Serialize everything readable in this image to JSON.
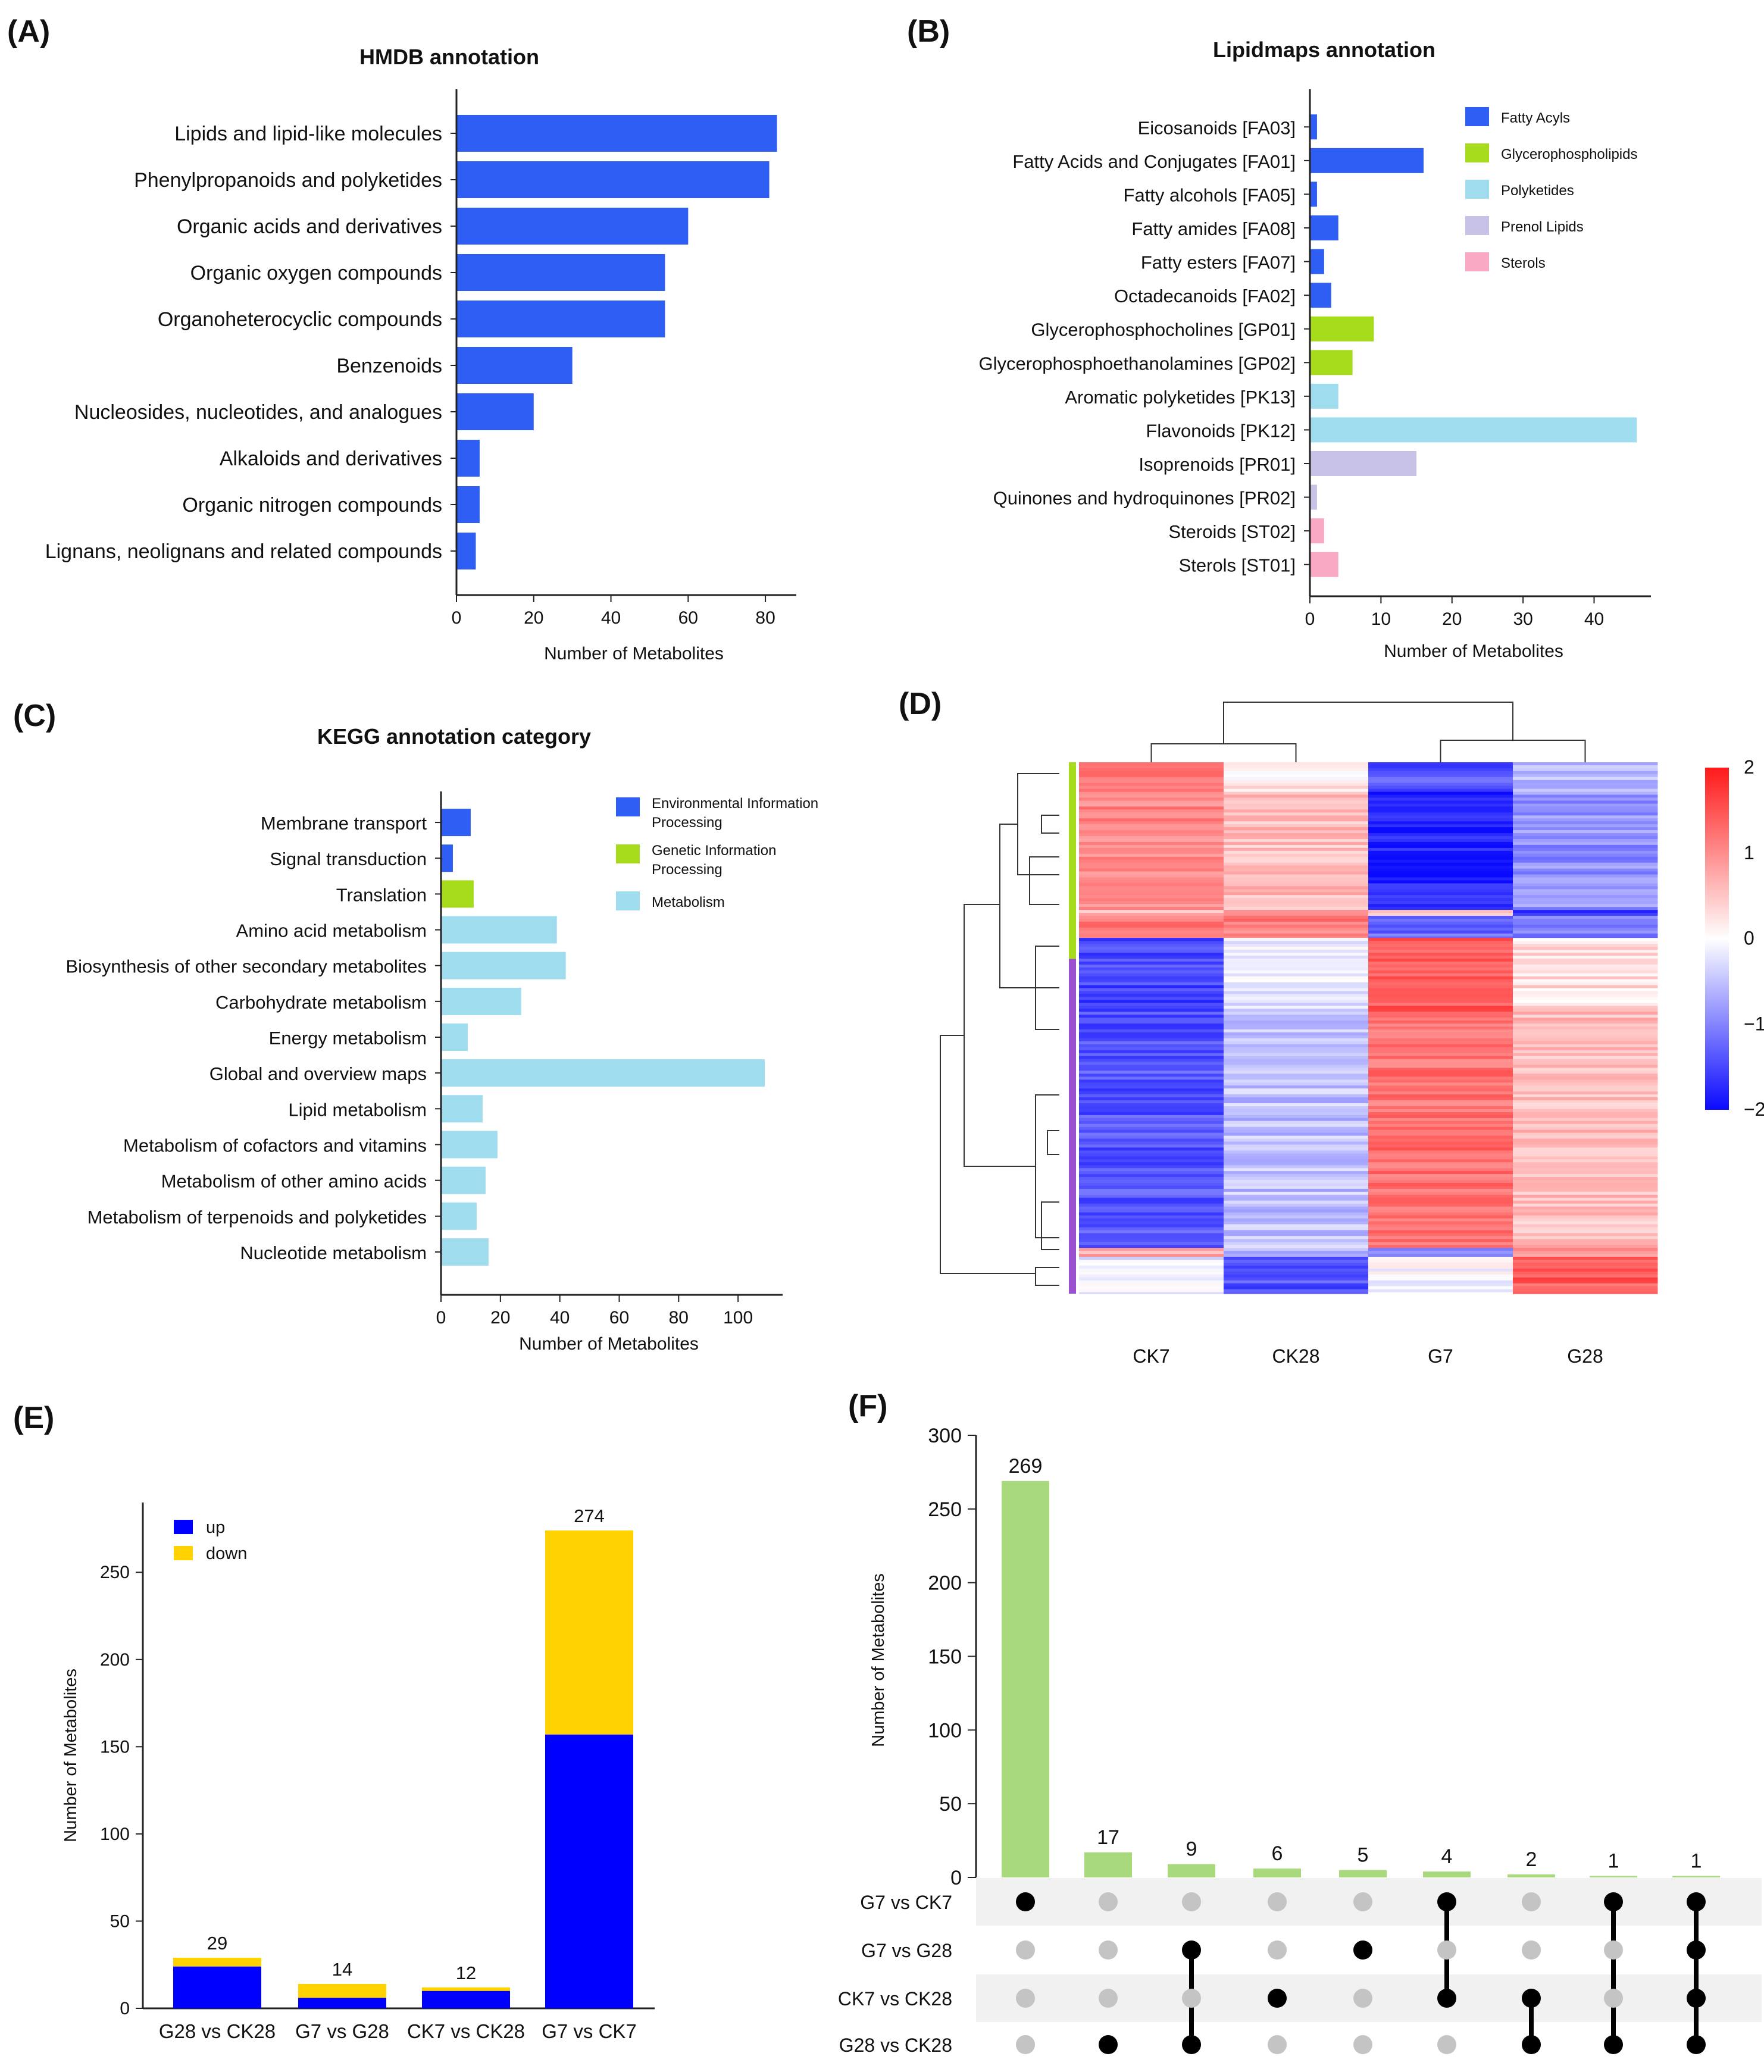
{
  "chart_data": [
    {
      "panel": "(A)",
      "type": "bar",
      "orientation": "horizontal",
      "title": "HMDB annotation",
      "xlabel": "Number of Metabolites",
      "categories": [
        "Lipids and lipid-like molecules",
        "Phenylpropanoids and polyketides",
        "Organic acids and derivatives",
        "Organic oxygen compounds",
        "Organoheterocyclic compounds",
        "Benzenoids",
        "Nucleosides, nucleotides, and analogues",
        "Alkaloids and derivatives",
        "Organic nitrogen compounds",
        "Lignans, neolignans and related compounds"
      ],
      "values": [
        83,
        81,
        60,
        54,
        54,
        30,
        20,
        6,
        6,
        5
      ],
      "xlim": [
        0,
        88
      ],
      "ticks": [
        0,
        20,
        40,
        60,
        80
      ],
      "color": "#2f5ef5"
    },
    {
      "panel": "(B)",
      "type": "bar",
      "orientation": "horizontal",
      "title": "Lipidmaps annotation",
      "xlabel": "Number of Metabolites",
      "categories": [
        "Eicosanoids [FA03]",
        "Fatty Acids and Conjugates [FA01]",
        "Fatty alcohols [FA05]",
        "Fatty amides [FA08]",
        "Fatty esters [FA07]",
        "Octadecanoids [FA02]",
        "Glycerophosphocholines [GP01]",
        "Glycerophosphoethanolamines [GP02]",
        "Aromatic polyketides [PK13]",
        "Flavonoids [PK12]",
        "Isoprenoids [PR01]",
        "Quinones and hydroquinones [PR02]",
        "Steroids [ST02]",
        "Sterols [ST01]"
      ],
      "values": [
        1,
        16,
        1,
        4,
        2,
        3,
        9,
        6,
        4,
        46,
        15,
        1,
        2,
        4
      ],
      "groups": [
        0,
        0,
        0,
        0,
        0,
        0,
        1,
        1,
        2,
        2,
        3,
        3,
        4,
        4
      ],
      "legend": [
        "Fatty Acyls",
        "Glycerophospholipids",
        "Polyketides",
        "Prenol Lipids",
        "Sterols"
      ],
      "colors": [
        "#2f5ef5",
        "#a6dc1c",
        "#9fdced",
        "#c8c3e6",
        "#f9a9c3"
      ],
      "xlim": [
        0,
        48
      ],
      "ticks": [
        0,
        10,
        20,
        30,
        40
      ]
    },
    {
      "panel": "(C)",
      "type": "bar",
      "orientation": "horizontal",
      "title": "KEGG annotation category",
      "xlabel": "Number of Metabolites",
      "categories": [
        "Membrane transport",
        "Signal transduction",
        "Translation",
        "Amino acid metabolism",
        "Biosynthesis of other secondary metabolites",
        "Carbohydrate metabolism",
        "Energy metabolism",
        "Global and overview maps",
        "Lipid metabolism",
        "Metabolism of cofactors and vitamins",
        "Metabolism of other amino acids",
        "Metabolism of terpenoids and polyketides",
        "Nucleotide metabolism"
      ],
      "values": [
        10,
        4,
        11,
        39,
        42,
        27,
        9,
        109,
        14,
        19,
        15,
        12,
        16
      ],
      "groups": [
        0,
        0,
        1,
        2,
        2,
        2,
        2,
        2,
        2,
        2,
        2,
        2,
        2
      ],
      "legend": [
        "Environmental Information Processing",
        "Genetic Information Processing",
        "Metabolism"
      ],
      "colors": [
        "#2f5ef5",
        "#a6dc1c",
        "#9fdced"
      ],
      "xlim": [
        0,
        115
      ],
      "ticks": [
        0,
        20,
        40,
        60,
        80,
        100
      ]
    },
    {
      "panel": "(D)",
      "type": "heatmap",
      "columns": [
        "CK7",
        "CK28",
        "G7",
        "G28"
      ],
      "scale_ticks": [
        "2",
        "1",
        "0",
        "−1",
        "−2"
      ],
      "range": [
        -2,
        2
      ]
    },
    {
      "panel": "(E)",
      "type": "bar",
      "stacked": true,
      "ylabel": "Number of Metabolites",
      "categories": [
        "G28 vs CK28",
        "G7 vs G28",
        "CK7 vs CK28",
        "G7 vs CK7"
      ],
      "series": [
        {
          "name": "up",
          "values": [
            24,
            6,
            10,
            157
          ],
          "color": "#0000ff"
        },
        {
          "name": "down",
          "values": [
            5,
            8,
            2,
            117
          ],
          "color": "#ffd200"
        }
      ],
      "totals": [
        "29",
        "14",
        "12",
        "274"
      ],
      "ylim": [
        0,
        290
      ],
      "ticks": [
        0,
        50,
        100,
        150,
        200,
        250
      ]
    },
    {
      "panel": "(F)",
      "type": "bar",
      "subtype": "upset",
      "ylabel": "Number of Metabolites",
      "values": [
        269,
        17,
        9,
        6,
        5,
        4,
        2,
        1,
        1
      ],
      "value_labels": [
        "269",
        "17",
        "9",
        "6",
        "5",
        "4",
        "2",
        "1",
        "1"
      ],
      "sets": [
        "G7 vs CK7",
        "G7 vs G28",
        "CK7 vs CK28",
        "G28 vs CK28"
      ],
      "membership": [
        [
          0
        ],
        [
          3
        ],
        [
          1,
          3
        ],
        [
          2
        ],
        [
          1
        ],
        [
          0,
          2
        ],
        [
          2,
          3
        ],
        [
          0,
          3
        ],
        [
          0,
          1,
          2,
          3
        ]
      ],
      "ylim": [
        0,
        300
      ],
      "ticks": [
        0,
        50,
        100,
        150,
        200,
        250,
        300
      ],
      "color": "#a8da7d"
    }
  ],
  "panel_labels": {
    "a": "(A)",
    "b": "(B)",
    "c": "(C)",
    "d": "(D)",
    "e": "(E)",
    "f": "(F)"
  }
}
